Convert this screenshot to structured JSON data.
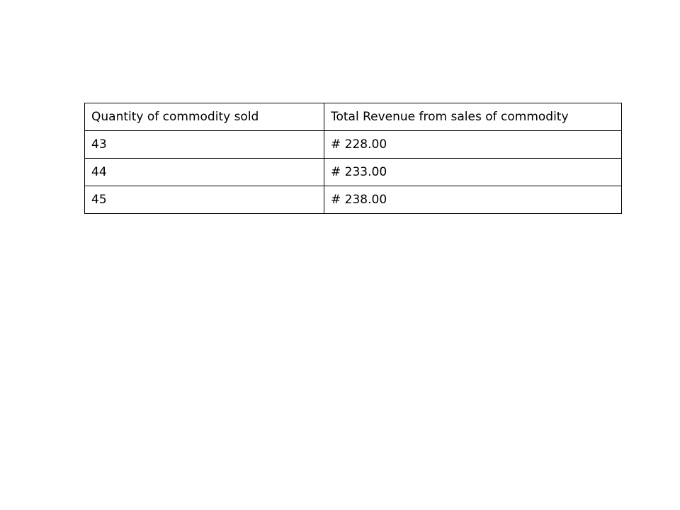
{
  "table": {
    "headers": {
      "quantity": "Quantity of commodity sold",
      "revenue": "Total Revenue from sales of commodity"
    },
    "rows": [
      {
        "quantity": "43",
        "revenue": "# 228.00"
      },
      {
        "quantity": "44",
        "revenue": "# 233.00"
      },
      {
        "quantity": "45",
        "revenue": "# 238.00"
      }
    ]
  }
}
